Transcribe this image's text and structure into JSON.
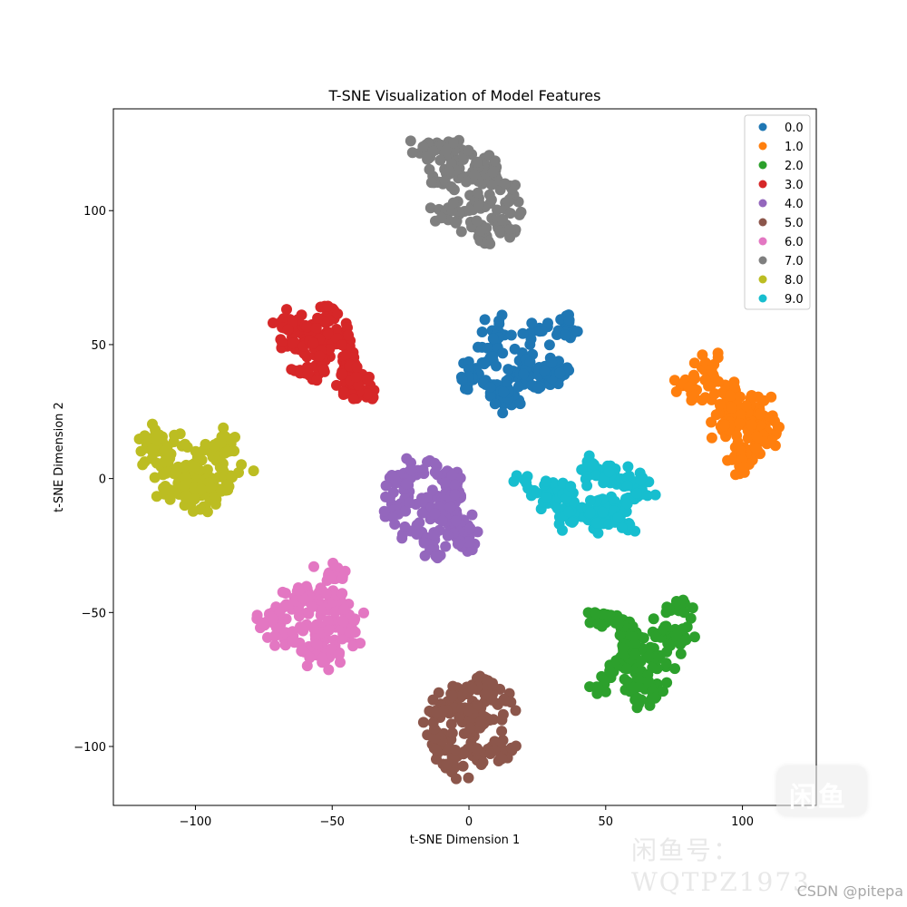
{
  "chart_data": {
    "type": "scatter",
    "title": "T-SNE Visualization of Model Features",
    "xlabel": "t-SNE Dimension 1",
    "ylabel": "t-SNE Dimension 2",
    "xlim": [
      -130,
      127
    ],
    "ylim": [
      -122,
      138
    ],
    "xticks": [
      -100,
      -50,
      0,
      50,
      100
    ],
    "yticks": [
      -100,
      -50,
      0,
      50,
      100
    ],
    "xtick_labels": [
      "−100",
      "−50",
      "0",
      "50",
      "100"
    ],
    "ytick_labels": [
      "−100",
      "−50",
      "0",
      "50",
      "100"
    ],
    "grid": false,
    "legend_position": "top-right",
    "series": [
      {
        "name": "0.0",
        "color": "#1f77b4",
        "center": [
          15,
          42
        ],
        "anchors": [
          [
            10,
            55
          ],
          [
            25,
            56
          ],
          [
            35,
            56
          ],
          [
            8,
            46
          ],
          [
            20,
            43
          ],
          [
            30,
            40
          ],
          [
            33,
            38
          ],
          [
            0,
            38
          ],
          [
            10,
            33
          ],
          [
            22,
            37
          ],
          [
            15,
            30
          ]
        ]
      },
      {
        "name": "1.0",
        "color": "#ff7f0e",
        "center": [
          95,
          22
        ],
        "anchors": [
          [
            80,
            34
          ],
          [
            87,
            43
          ],
          [
            90,
            35
          ],
          [
            95,
            30
          ],
          [
            98,
            26
          ],
          [
            103,
            22
          ],
          [
            107,
            27
          ],
          [
            108,
            20
          ],
          [
            103,
            12
          ],
          [
            100,
            7
          ],
          [
            106,
            15
          ],
          [
            94,
            20
          ]
        ]
      },
      {
        "name": "2.0",
        "color": "#2ca02c",
        "center": [
          62,
          -62
        ],
        "anchors": [
          [
            48,
            -53
          ],
          [
            55,
            -55
          ],
          [
            60,
            -58
          ],
          [
            70,
            -58
          ],
          [
            76,
            -47
          ],
          [
            78,
            -58
          ],
          [
            68,
            -68
          ],
          [
            55,
            -70
          ],
          [
            50,
            -76
          ],
          [
            63,
            -77
          ],
          [
            66,
            -80
          ],
          [
            58,
            -63
          ]
        ]
      },
      {
        "name": "3.0",
        "color": "#d62728",
        "center": [
          -50,
          47
        ],
        "anchors": [
          [
            -66,
            57
          ],
          [
            -60,
            58
          ],
          [
            -52,
            60
          ],
          [
            -47,
            52
          ],
          [
            -64,
            50
          ],
          [
            -55,
            44
          ],
          [
            -60,
            40
          ],
          [
            -44,
            41
          ],
          [
            -40,
            40
          ],
          [
            -45,
            35
          ],
          [
            -40,
            32
          ],
          [
            -55,
            52
          ]
        ]
      },
      {
        "name": "4.0",
        "color": "#9467bd",
        "center": [
          -12,
          -12
        ],
        "anchors": [
          [
            -20,
            3
          ],
          [
            -12,
            4
          ],
          [
            -26,
            -4
          ],
          [
            -8,
            -2
          ],
          [
            -18,
            -9
          ],
          [
            -28,
            -13
          ],
          [
            -10,
            -13
          ],
          [
            -20,
            -19
          ],
          [
            -5,
            -18
          ],
          [
            -14,
            -24
          ],
          [
            -2,
            -22
          ],
          [
            -6,
            -8
          ]
        ]
      },
      {
        "name": "5.0",
        "color": "#8c564b",
        "center": [
          0,
          -92
        ],
        "anchors": [
          [
            5,
            -77
          ],
          [
            -3,
            -80
          ],
          [
            10,
            -84
          ],
          [
            -10,
            -87
          ],
          [
            5,
            -90
          ],
          [
            -12,
            -96
          ],
          [
            0,
            -95
          ],
          [
            -10,
            -100
          ],
          [
            5,
            -103
          ],
          [
            -5,
            -106
          ],
          [
            13,
            -102
          ],
          [
            -2,
            -88
          ]
        ]
      },
      {
        "name": "6.0",
        "color": "#e377c2",
        "center": [
          -56,
          -54
        ],
        "anchors": [
          [
            -50,
            -37
          ],
          [
            -47,
            -45
          ],
          [
            -63,
            -43
          ],
          [
            -57,
            -45
          ],
          [
            -72,
            -52
          ],
          [
            -64,
            -54
          ],
          [
            -54,
            -52
          ],
          [
            -45,
            -52
          ],
          [
            -68,
            -60
          ],
          [
            -57,
            -60
          ],
          [
            -46,
            -58
          ],
          [
            -58,
            -65
          ],
          [
            -51,
            -65
          ]
        ]
      },
      {
        "name": "7.0",
        "color": "#7f7f7f",
        "center": [
          0,
          108
        ],
        "anchors": [
          [
            -15,
            122
          ],
          [
            -8,
            124
          ],
          [
            -5,
            117
          ],
          [
            5,
            118
          ],
          [
            -10,
            112
          ],
          [
            2,
            110
          ],
          [
            8,
            114
          ],
          [
            13,
            108
          ],
          [
            0,
            100
          ],
          [
            -8,
            100
          ],
          [
            6,
            103
          ],
          [
            15,
            100
          ],
          [
            5,
            92
          ],
          [
            13,
            95
          ]
        ]
      },
      {
        "name": "8.0",
        "color": "#bcbd22",
        "center": [
          -100,
          2
        ],
        "anchors": [
          [
            -115,
            13
          ],
          [
            -108,
            13
          ],
          [
            -112,
            4
          ],
          [
            -104,
            3
          ],
          [
            -95,
            10
          ],
          [
            -90,
            13
          ],
          [
            -98,
            0
          ],
          [
            -88,
            2
          ],
          [
            -110,
            -6
          ],
          [
            -103,
            -5
          ],
          [
            -93,
            -3
          ],
          [
            -100,
            -8
          ]
        ]
      },
      {
        "name": "9.0",
        "color": "#17becf",
        "center": [
          42,
          -7
        ],
        "anchors": [
          [
            20,
            -3
          ],
          [
            28,
            -7
          ],
          [
            35,
            -5
          ],
          [
            43,
            3
          ],
          [
            50,
            2
          ],
          [
            58,
            0
          ],
          [
            62,
            -5
          ],
          [
            40,
            -12
          ],
          [
            48,
            -10
          ],
          [
            55,
            -12
          ],
          [
            47,
            -17
          ],
          [
            56,
            -16
          ],
          [
            35,
            -14
          ]
        ]
      }
    ]
  },
  "watermarks": {
    "csdn": "CSDN @pitepa",
    "logo_text": "闲鱼",
    "id_text": "闲鱼号：WQTPZ1973"
  }
}
